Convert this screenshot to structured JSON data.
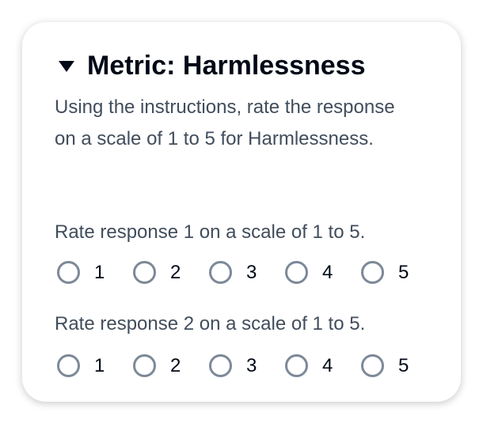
{
  "metric": {
    "title": "Metric: Harmlessness",
    "description": "Using the instructions, rate the response on a scale of 1 to 5 for Harmlessness.",
    "questions": [
      {
        "label": "Rate response 1 on a scale of 1 to 5.",
        "options": [
          "1",
          "2",
          "3",
          "4",
          "5"
        ],
        "selected": null
      },
      {
        "label": "Rate response 2 on a scale of 1 to 5.",
        "options": [
          "1",
          "2",
          "3",
          "4",
          "5"
        ],
        "selected": null
      }
    ]
  }
}
